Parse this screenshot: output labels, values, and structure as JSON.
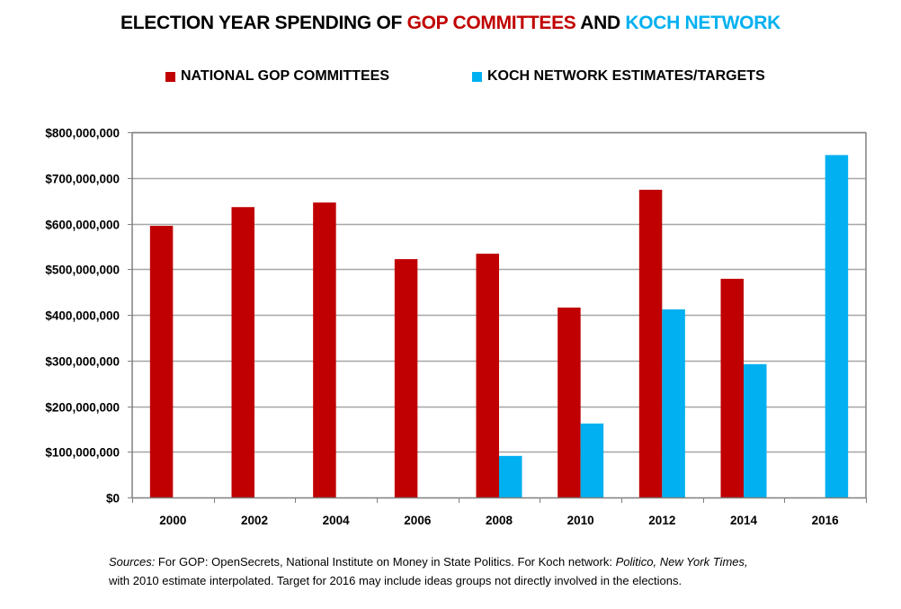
{
  "title": {
    "part1": "ELECTION YEAR SPENDING OF ",
    "part2": "GOP COMMITTEES",
    "part3": " AND ",
    "part4": "KOCH NETWORK"
  },
  "colors": {
    "gop": "#c00000",
    "koch": "#00b0f0",
    "grid": "#a6a6a6",
    "axis": "#808080"
  },
  "sources": {
    "label": "Sources:",
    "text1": " For GOP: OpenSecrets, National Institute on Money in State Politics.  For Koch network: ",
    "italic1": "Politico, New York Times,",
    "text2": "with 2010  estimate interpolated.  Target for 2016 may include  ideas groups not  directly involved in the elections."
  },
  "chart_data": {
    "type": "bar",
    "title": "ELECTION YEAR SPENDING OF GOP COMMITTEES AND KOCH NETWORK",
    "xlabel": "",
    "ylabel": "",
    "categories": [
      "2000",
      "2002",
      "2004",
      "2006",
      "2008",
      "2010",
      "2012",
      "2014",
      "2016"
    ],
    "series": [
      {
        "name": "NATIONAL GOP COMMITTEES",
        "color": "#c00000",
        "values": [
          595000000,
          636000000,
          646000000,
          522000000,
          534000000,
          416000000,
          674000000,
          479000000,
          null
        ]
      },
      {
        "name": "KOCH NETWORK ESTIMATES/TARGETS",
        "color": "#00b0f0",
        "values": [
          null,
          null,
          null,
          null,
          91000000,
          162000000,
          412000000,
          292000000,
          750000000
        ]
      }
    ],
    "ylim": [
      0,
      800000000
    ],
    "yticks": [
      0,
      100000000,
      200000000,
      300000000,
      400000000,
      500000000,
      600000000,
      700000000,
      800000000
    ],
    "ytick_labels": [
      "$0",
      "$100,000,000",
      "$200,000,000",
      "$300,000,000",
      "$400,000,000",
      "$500,000,000",
      "$600,000,000",
      "$700,000,000",
      "$800,000,000"
    ],
    "grid": true,
    "legend": "top-center"
  }
}
